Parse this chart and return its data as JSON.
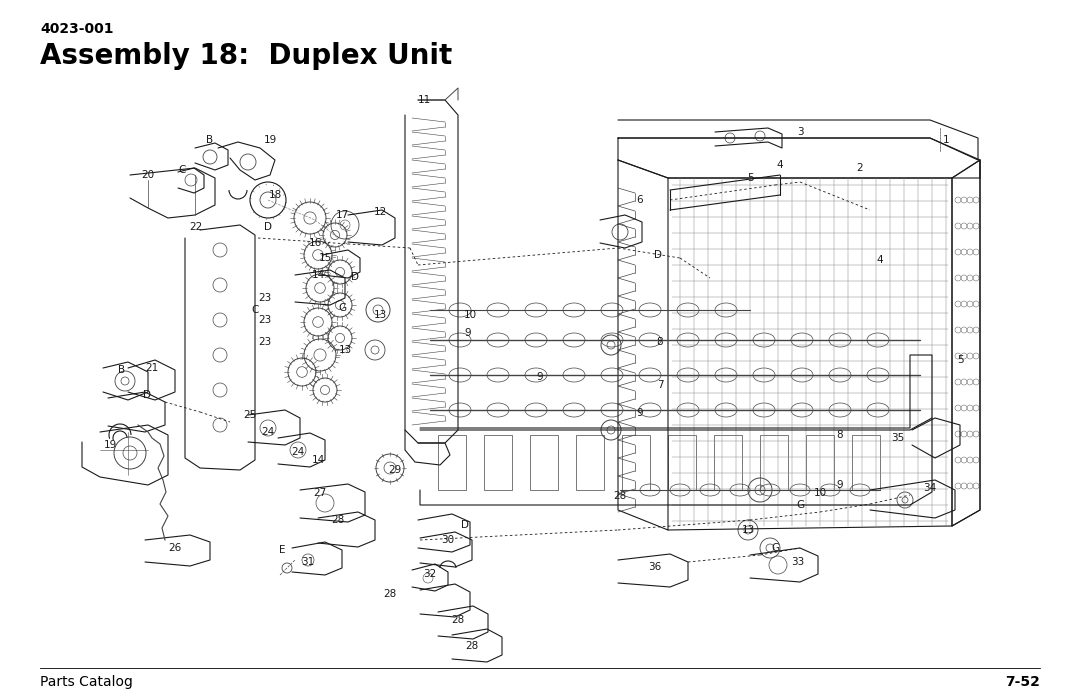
{
  "page_id": "4023-001",
  "title": "Assembly 18:  Duplex Unit",
  "footer_left": "Parts Catalog",
  "footer_right": "7-52",
  "bg_color": "#ffffff",
  "title_fontsize": 20,
  "page_id_fontsize": 10,
  "footer_fontsize": 10,
  "fig_width": 10.8,
  "fig_height": 6.98,
  "dpi": 100
}
